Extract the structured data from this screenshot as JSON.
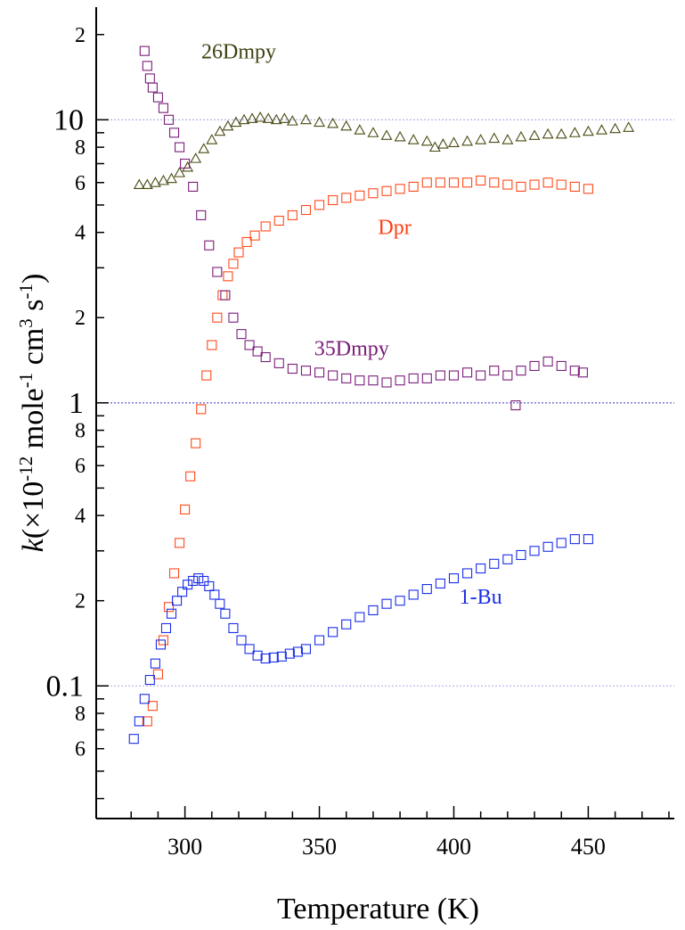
{
  "chart_data": {
    "type": "scatter",
    "title": "",
    "xlabel": "Temperature (K)",
    "ylabel_parts": [
      "k",
      "(×10",
      "-12",
      " mole",
      "-1",
      " cm",
      "3",
      " s",
      "-1",
      ")"
    ],
    "x_scale": "linear",
    "y_scale": "log",
    "xlim": [
      267,
      482
    ],
    "ylim": [
      0.034,
      25
    ],
    "x_ticks": [
      300,
      350,
      400,
      450
    ],
    "x_tick_labels": [
      "300",
      "350",
      "400",
      "450"
    ],
    "y_decade_ticks": [
      0.1,
      1,
      10
    ],
    "y_decade_labels": [
      "0.1",
      "1",
      "10"
    ],
    "y_minor_ticks": [
      0.06,
      0.08,
      0.2,
      0.4,
      0.6,
      0.8,
      2,
      4,
      6,
      8,
      20
    ],
    "y_minor_labels": [
      "6",
      "8",
      "2",
      "4",
      "6",
      "8",
      "2",
      "4",
      "6",
      "8",
      "2"
    ],
    "grid": "horizontal dotted lines at decades",
    "series": [
      {
        "name": "26Dmpy",
        "marker": "triangle",
        "color": "#4a4a12",
        "label_color": "#3f3f10",
        "label_at": [
          320,
          16.5
        ],
        "x": [
          283,
          286,
          289,
          292,
          295,
          298,
          301,
          304,
          307,
          310,
          313,
          316,
          319,
          322,
          325,
          328,
          331,
          334,
          337,
          340,
          345,
          350,
          355,
          360,
          365,
          370,
          375,
          380,
          385,
          390,
          393,
          396,
          400,
          405,
          410,
          415,
          420,
          425,
          430,
          435,
          440,
          445,
          450,
          455,
          460,
          465
        ],
        "y": [
          5.9,
          5.9,
          6.0,
          6.1,
          6.2,
          6.5,
          6.8,
          7.3,
          7.9,
          8.5,
          9.1,
          9.5,
          9.8,
          10.0,
          10.1,
          10.2,
          10.1,
          10.0,
          10.1,
          9.9,
          10.0,
          9.8,
          9.7,
          9.5,
          9.2,
          9.0,
          8.8,
          8.7,
          8.5,
          8.4,
          8.0,
          8.2,
          8.3,
          8.4,
          8.5,
          8.6,
          8.5,
          8.7,
          8.8,
          8.9,
          8.9,
          9.0,
          9.1,
          9.2,
          9.3,
          9.4
        ]
      },
      {
        "name": "Dpr",
        "marker": "square",
        "color": "#ff4a1c",
        "label_color": "#ff3e12",
        "label_at": [
          378,
          3.95
        ],
        "x": [
          286,
          288,
          290,
          292,
          294,
          296,
          298,
          300,
          302,
          304,
          306,
          308,
          310,
          312,
          314,
          316,
          318,
          320,
          323,
          326,
          330,
          335,
          340,
          345,
          350,
          355,
          360,
          365,
          370,
          375,
          380,
          385,
          390,
          395,
          400,
          405,
          410,
          415,
          420,
          425,
          430,
          435,
          440,
          445,
          450
        ],
        "y": [
          0.075,
          0.085,
          0.11,
          0.145,
          0.19,
          0.25,
          0.32,
          0.42,
          0.55,
          0.72,
          0.95,
          1.25,
          1.6,
          2.0,
          2.4,
          2.8,
          3.1,
          3.4,
          3.7,
          3.9,
          4.2,
          4.4,
          4.6,
          4.8,
          5.0,
          5.2,
          5.3,
          5.4,
          5.5,
          5.6,
          5.7,
          5.8,
          6.0,
          6.0,
          6.0,
          6.0,
          6.1,
          6.0,
          5.9,
          5.8,
          5.9,
          6.0,
          5.9,
          5.8,
          5.7
        ]
      },
      {
        "name": "35Dmpy",
        "marker": "square",
        "color": "#7a1e7a",
        "label_color": "#7a1a78",
        "label_at": [
          362,
          1.47
        ],
        "x": [
          285,
          286,
          287,
          288,
          290,
          292,
          294,
          296,
          298,
          300,
          303,
          306,
          309,
          312,
          315,
          318,
          321,
          324,
          327,
          330,
          335,
          340,
          345,
          350,
          355,
          360,
          365,
          370,
          375,
          380,
          385,
          390,
          395,
          400,
          405,
          410,
          415,
          420,
          423,
          425,
          430,
          435,
          440,
          445,
          448
        ],
        "y": [
          17.5,
          15.5,
          14.0,
          13.0,
          12.0,
          11.0,
          10.0,
          9.0,
          8.0,
          7.0,
          5.8,
          4.6,
          3.6,
          2.9,
          2.4,
          2.0,
          1.75,
          1.6,
          1.52,
          1.45,
          1.38,
          1.32,
          1.3,
          1.28,
          1.25,
          1.22,
          1.2,
          1.2,
          1.18,
          1.2,
          1.22,
          1.22,
          1.25,
          1.25,
          1.28,
          1.25,
          1.3,
          1.25,
          0.98,
          1.3,
          1.35,
          1.4,
          1.35,
          1.3,
          1.28
        ]
      },
      {
        "name": "1-Bu",
        "marker": "square",
        "color": "#1a2ee8",
        "label_color": "#1a2ee0",
        "label_at": [
          410,
          0.195
        ],
        "x": [
          281,
          283,
          285,
          287,
          289,
          291,
          293,
          295,
          297,
          299,
          301,
          303,
          305,
          307,
          309,
          311,
          313,
          315,
          318,
          321,
          324,
          327,
          330,
          333,
          336,
          339,
          342,
          345,
          350,
          355,
          360,
          365,
          370,
          375,
          380,
          385,
          390,
          395,
          400,
          405,
          410,
          415,
          420,
          425,
          430,
          435,
          440,
          445,
          450
        ],
        "y": [
          0.065,
          0.075,
          0.09,
          0.105,
          0.12,
          0.14,
          0.16,
          0.18,
          0.2,
          0.215,
          0.228,
          0.235,
          0.24,
          0.235,
          0.225,
          0.21,
          0.195,
          0.18,
          0.16,
          0.145,
          0.135,
          0.128,
          0.125,
          0.126,
          0.127,
          0.13,
          0.132,
          0.135,
          0.145,
          0.155,
          0.165,
          0.175,
          0.185,
          0.195,
          0.2,
          0.21,
          0.22,
          0.23,
          0.24,
          0.25,
          0.26,
          0.27,
          0.28,
          0.29,
          0.3,
          0.31,
          0.32,
          0.33,
          0.33
        ]
      }
    ]
  }
}
